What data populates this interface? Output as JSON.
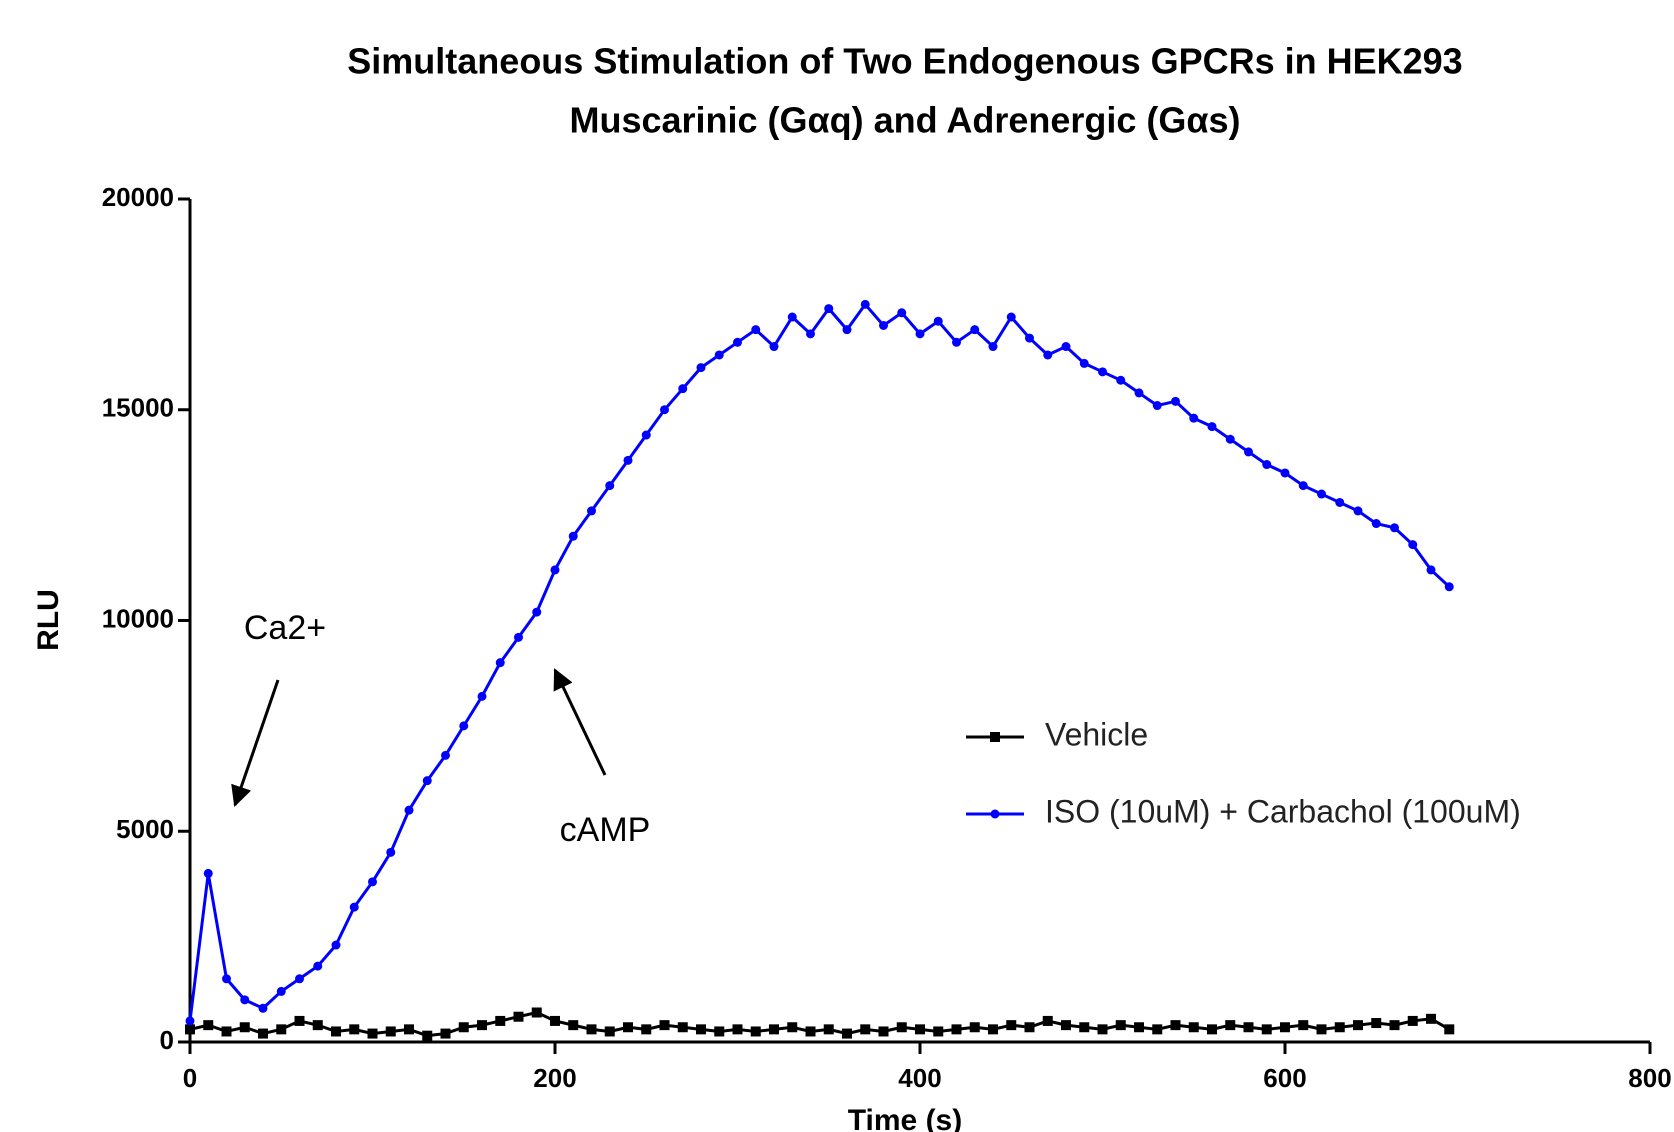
{
  "chart_data": {
    "type": "line",
    "title": [
      "Simultaneous Stimulation of Two Endogenous GPCRs in HEK293",
      "Muscarinic (Gαq) and Adrenergic (Gαs)"
    ],
    "x_label": "Time (s)",
    "y_label": "RLU",
    "x": [
      0,
      10,
      20,
      30,
      40,
      50,
      60,
      70,
      80,
      90,
      100,
      110,
      120,
      130,
      140,
      150,
      160,
      170,
      180,
      190,
      200,
      210,
      220,
      230,
      240,
      250,
      260,
      270,
      280,
      290,
      300,
      310,
      320,
      330,
      340,
      350,
      360,
      370,
      380,
      390,
      400,
      410,
      420,
      430,
      440,
      450,
      460,
      470,
      480,
      490,
      500,
      510,
      520,
      530,
      540,
      550,
      560,
      570,
      580,
      590,
      600,
      610,
      620,
      630,
      640,
      650,
      660,
      670,
      680,
      690
    ],
    "series": [
      {
        "name": "Vehicle",
        "color": "#000000",
        "marker": "square",
        "values": [
          300,
          400,
          250,
          350,
          200,
          300,
          500,
          400,
          250,
          300,
          200,
          250,
          300,
          150,
          200,
          350,
          400,
          500,
          600,
          700,
          500,
          400,
          300,
          250,
          350,
          300,
          400,
          350,
          300,
          250,
          300,
          250,
          300,
          350,
          250,
          300,
          200,
          300,
          250,
          350,
          300,
          250,
          300,
          350,
          300,
          400,
          350,
          500,
          400,
          350,
          300,
          400,
          350,
          300,
          400,
          350,
          300,
          400,
          350,
          300,
          350,
          400,
          300,
          350,
          400,
          450,
          400,
          500,
          550,
          300
        ]
      },
      {
        "name": "ISO (10uM) + Carbachol (100uM)",
        "color": "#0000ff",
        "marker": "circle",
        "values": [
          500,
          4000,
          1500,
          1000,
          800,
          1200,
          1500,
          1800,
          2300,
          3200,
          3800,
          4500,
          5500,
          6200,
          6800,
          7500,
          8200,
          9000,
          9600,
          10200,
          11200,
          12000,
          12600,
          13200,
          13800,
          14400,
          15000,
          15500,
          16000,
          16300,
          16600,
          16900,
          16500,
          17200,
          16800,
          17400,
          16900,
          17500,
          17000,
          17300,
          16800,
          17100,
          16600,
          16900,
          16500,
          17200,
          16700,
          16300,
          16500,
          16100,
          15900,
          15700,
          15400,
          15100,
          15200,
          14800,
          14600,
          14300,
          14000,
          13700,
          13500,
          13200,
          13000,
          12800,
          12600,
          12300,
          12200,
          11800,
          11200,
          10800
        ]
      }
    ],
    "xlim": [
      0,
      800
    ],
    "xticks": [
      0,
      200,
      400,
      600,
      800
    ],
    "ylim": [
      0,
      20000
    ],
    "yticks": [
      0,
      5000,
      10000,
      15000,
      20000
    ],
    "annotations": [
      "Ca2+",
      "cAMP"
    ]
  }
}
